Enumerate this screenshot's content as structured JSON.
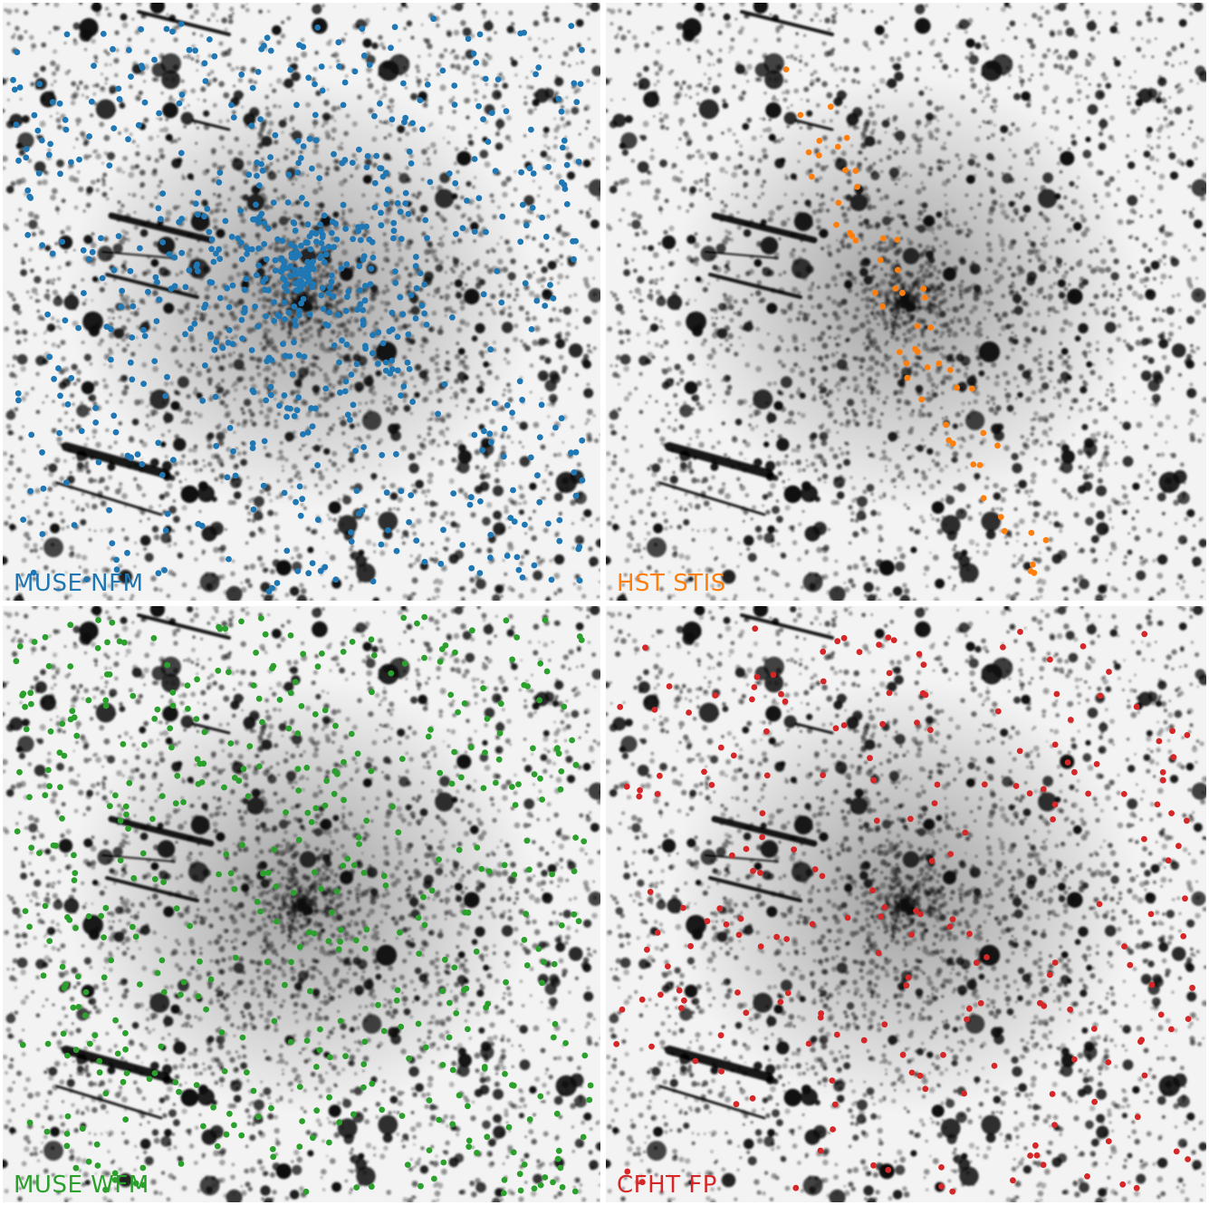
{
  "figure": {
    "panels": [
      {
        "id": "muse-nfm",
        "label": "MUSE NFM",
        "color": "#1f77b4",
        "marker_count": 720
      },
      {
        "id": "hst-stis",
        "label": "HST STIS",
        "color": "#ff7f0e",
        "marker_count": 55
      },
      {
        "id": "muse-wfm",
        "label": "MUSE WFM",
        "color": "#2ca02c",
        "marker_count": 460
      },
      {
        "id": "cfht-fp",
        "label": "CFHT FP",
        "color": "#d62728",
        "marker_count": 210
      }
    ],
    "background": "grayscale star-field image of a dense globular cluster core (inverted: stars dark on light)",
    "colors": {
      "separator": "#ffffff",
      "star": "#111111",
      "sky": "#f3f3f3"
    }
  }
}
